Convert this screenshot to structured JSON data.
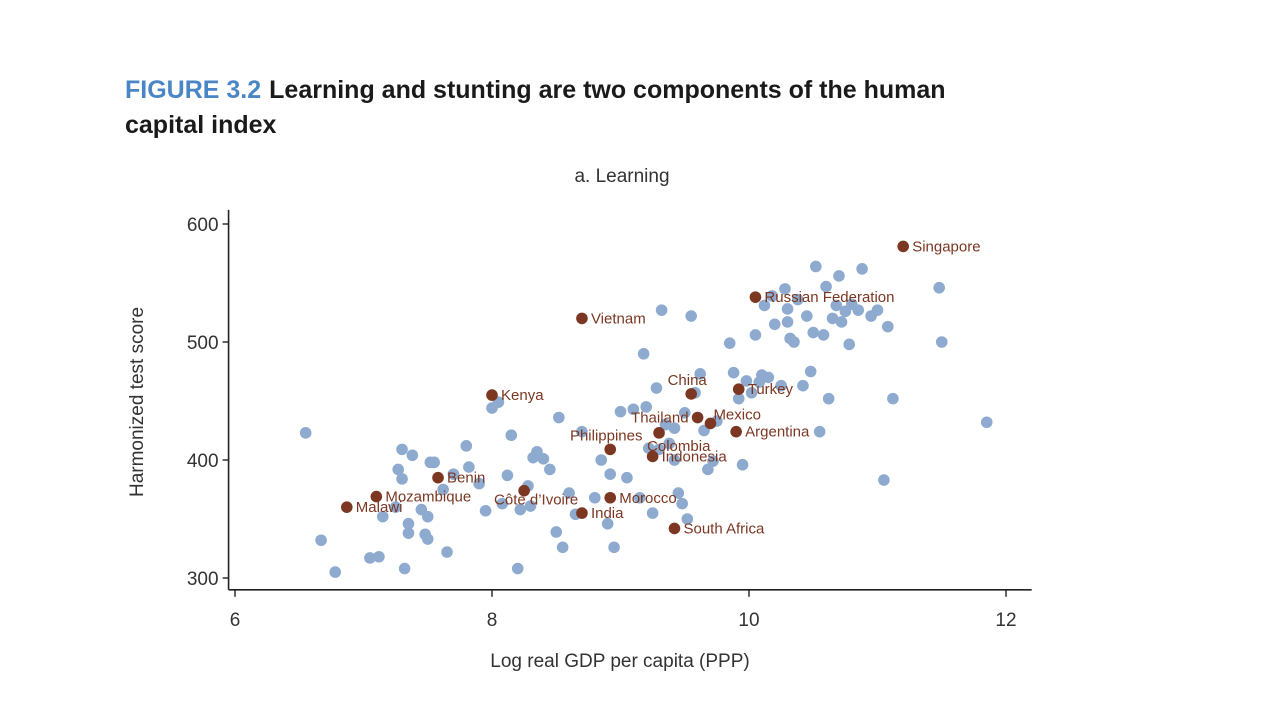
{
  "figure": {
    "label": "FIGURE 3.2",
    "title": "Learning and stunting are two components of the human capital index"
  },
  "chart_data": {
    "type": "scatter",
    "title": "a. Learning",
    "xlabel": "Log real GDP per capita (PPP)",
    "ylabel": "Harmonized test score",
    "xlim": [
      5.95,
      12.2
    ],
    "ylim": [
      290,
      612
    ],
    "xticks": [
      6,
      8,
      10,
      12
    ],
    "yticks": [
      300,
      400,
      500,
      600
    ],
    "grid": false,
    "colors": {
      "other": "#8eabcf",
      "highlight": "#7b3722"
    },
    "series": [
      {
        "key": "other",
        "points": [
          [
            6.55,
            423
          ],
          [
            6.67,
            332
          ],
          [
            6.78,
            305
          ],
          [
            7.05,
            317
          ],
          [
            7.12,
            318
          ],
          [
            7.15,
            352
          ],
          [
            7.25,
            360
          ],
          [
            7.27,
            392
          ],
          [
            7.3,
            384
          ],
          [
            7.3,
            409
          ],
          [
            7.32,
            308
          ],
          [
            7.35,
            338
          ],
          [
            7.35,
            346
          ],
          [
            7.38,
            404
          ],
          [
            7.45,
            358
          ],
          [
            7.48,
            337
          ],
          [
            7.5,
            333
          ],
          [
            7.5,
            352
          ],
          [
            7.52,
            398
          ],
          [
            7.55,
            398
          ],
          [
            7.62,
            375
          ],
          [
            7.65,
            322
          ],
          [
            7.7,
            388
          ],
          [
            7.8,
            412
          ],
          [
            7.82,
            394
          ],
          [
            7.9,
            380
          ],
          [
            7.95,
            357
          ],
          [
            8.0,
            444
          ],
          [
            8.05,
            449
          ],
          [
            8.08,
            363
          ],
          [
            8.12,
            387
          ],
          [
            8.15,
            421
          ],
          [
            8.2,
            308
          ],
          [
            8.22,
            358
          ],
          [
            8.28,
            378
          ],
          [
            8.3,
            361
          ],
          [
            8.32,
            402
          ],
          [
            8.35,
            407
          ],
          [
            8.4,
            401
          ],
          [
            8.45,
            392
          ],
          [
            8.5,
            339
          ],
          [
            8.52,
            436
          ],
          [
            8.55,
            326
          ],
          [
            8.6,
            372
          ],
          [
            8.65,
            354
          ],
          [
            8.7,
            424
          ],
          [
            8.8,
            368
          ],
          [
            8.85,
            400
          ],
          [
            8.9,
            346
          ],
          [
            8.92,
            388
          ],
          [
            8.95,
            326
          ],
          [
            9.0,
            441
          ],
          [
            9.05,
            385
          ],
          [
            9.1,
            443
          ],
          [
            9.15,
            368
          ],
          [
            9.18,
            490
          ],
          [
            9.2,
            445
          ],
          [
            9.22,
            410
          ],
          [
            9.25,
            355
          ],
          [
            9.28,
            461
          ],
          [
            9.3,
            409
          ],
          [
            9.32,
            527
          ],
          [
            9.35,
            430
          ],
          [
            9.38,
            414
          ],
          [
            9.42,
            400
          ],
          [
            9.45,
            372
          ],
          [
            9.48,
            363
          ],
          [
            9.5,
            440
          ],
          [
            9.52,
            350
          ],
          [
            9.55,
            522
          ],
          [
            9.58,
            457
          ],
          [
            9.62,
            473
          ],
          [
            9.65,
            425
          ],
          [
            9.68,
            392
          ],
          [
            9.72,
            399
          ],
          [
            9.75,
            433
          ],
          [
            9.85,
            499
          ],
          [
            9.88,
            474
          ],
          [
            9.92,
            452
          ],
          [
            9.95,
            396
          ],
          [
            9.98,
            467
          ],
          [
            10.02,
            457
          ],
          [
            10.05,
            506
          ],
          [
            10.08,
            466
          ],
          [
            10.12,
            531
          ],
          [
            10.15,
            470
          ],
          [
            10.18,
            539
          ],
          [
            10.2,
            515
          ],
          [
            10.25,
            463
          ],
          [
            10.28,
            545
          ],
          [
            10.3,
            528
          ],
          [
            10.3,
            517
          ],
          [
            10.32,
            503
          ],
          [
            10.35,
            500
          ],
          [
            10.38,
            536
          ],
          [
            10.42,
            463
          ],
          [
            10.45,
            522
          ],
          [
            10.48,
            475
          ],
          [
            10.5,
            508
          ],
          [
            10.52,
            564
          ],
          [
            10.55,
            424
          ],
          [
            10.58,
            506
          ],
          [
            10.6,
            547
          ],
          [
            10.62,
            452
          ],
          [
            10.65,
            520
          ],
          [
            10.68,
            531
          ],
          [
            10.7,
            556
          ],
          [
            10.72,
            517
          ],
          [
            10.75,
            526
          ],
          [
            10.78,
            498
          ],
          [
            10.8,
            532
          ],
          [
            10.85,
            527
          ],
          [
            10.88,
            562
          ],
          [
            10.95,
            522
          ],
          [
            11.0,
            527
          ],
          [
            11.05,
            383
          ],
          [
            11.08,
            513
          ],
          [
            11.12,
            452
          ],
          [
            11.48,
            546
          ],
          [
            11.5,
            500
          ],
          [
            11.85,
            432
          ],
          [
            10.1,
            472
          ],
          [
            9.42,
            427
          ]
        ]
      },
      {
        "key": "highlight",
        "points": [
          [
            6.87,
            360
          ],
          [
            7.1,
            369
          ],
          [
            7.58,
            385
          ],
          [
            8.0,
            455
          ],
          [
            8.25,
            374
          ],
          [
            8.7,
            355
          ],
          [
            8.7,
            520
          ],
          [
            8.92,
            409
          ],
          [
            8.92,
            368
          ],
          [
            9.25,
            403
          ],
          [
            9.3,
            423
          ],
          [
            9.42,
            342
          ],
          [
            9.55,
            456
          ],
          [
            9.6,
            436
          ],
          [
            9.7,
            431
          ],
          [
            9.9,
            424
          ],
          [
            9.92,
            460
          ],
          [
            10.05,
            538
          ],
          [
            11.2,
            581
          ]
        ]
      }
    ],
    "labels": [
      {
        "x": 6.87,
        "y": 360,
        "text": "Malawi",
        "side": "right"
      },
      {
        "x": 7.1,
        "y": 369,
        "text": "Mozambique",
        "side": "right"
      },
      {
        "x": 7.58,
        "y": 385,
        "text": "Benin",
        "side": "right"
      },
      {
        "x": 8.0,
        "y": 455,
        "text": "Kenya",
        "side": "right"
      },
      {
        "x": 8.25,
        "y": 374,
        "text": "Côte d’Ivoire",
        "side": "below-center"
      },
      {
        "x": 8.7,
        "y": 355,
        "text": "India",
        "side": "right"
      },
      {
        "x": 8.7,
        "y": 520,
        "text": "Vietnam",
        "side": "right"
      },
      {
        "x": 8.92,
        "y": 409,
        "text": "Philippines",
        "side": "above-center"
      },
      {
        "x": 8.92,
        "y": 368,
        "text": "Morocco",
        "side": "right"
      },
      {
        "x": 9.25,
        "y": 403,
        "text": "Indonesia",
        "side": "right"
      },
      {
        "x": 9.3,
        "y": 423,
        "text": "Colombia",
        "side": "below-right"
      },
      {
        "x": 9.42,
        "y": 342,
        "text": "South Africa",
        "side": "right"
      },
      {
        "x": 9.55,
        "y": 456,
        "text": "China",
        "side": "above-center"
      },
      {
        "x": 9.6,
        "y": 436,
        "text": "Thailand",
        "side": "left"
      },
      {
        "x": 9.7,
        "y": 431,
        "text": "Mexico",
        "side": "right-up"
      },
      {
        "x": 9.9,
        "y": 424,
        "text": "Argentina",
        "side": "right"
      },
      {
        "x": 9.92,
        "y": 460,
        "text": "Turkey",
        "side": "right"
      },
      {
        "x": 10.05,
        "y": 538,
        "text": "Russian Federation",
        "side": "right"
      },
      {
        "x": 11.2,
        "y": 581,
        "text": "Singapore",
        "side": "right"
      }
    ]
  }
}
